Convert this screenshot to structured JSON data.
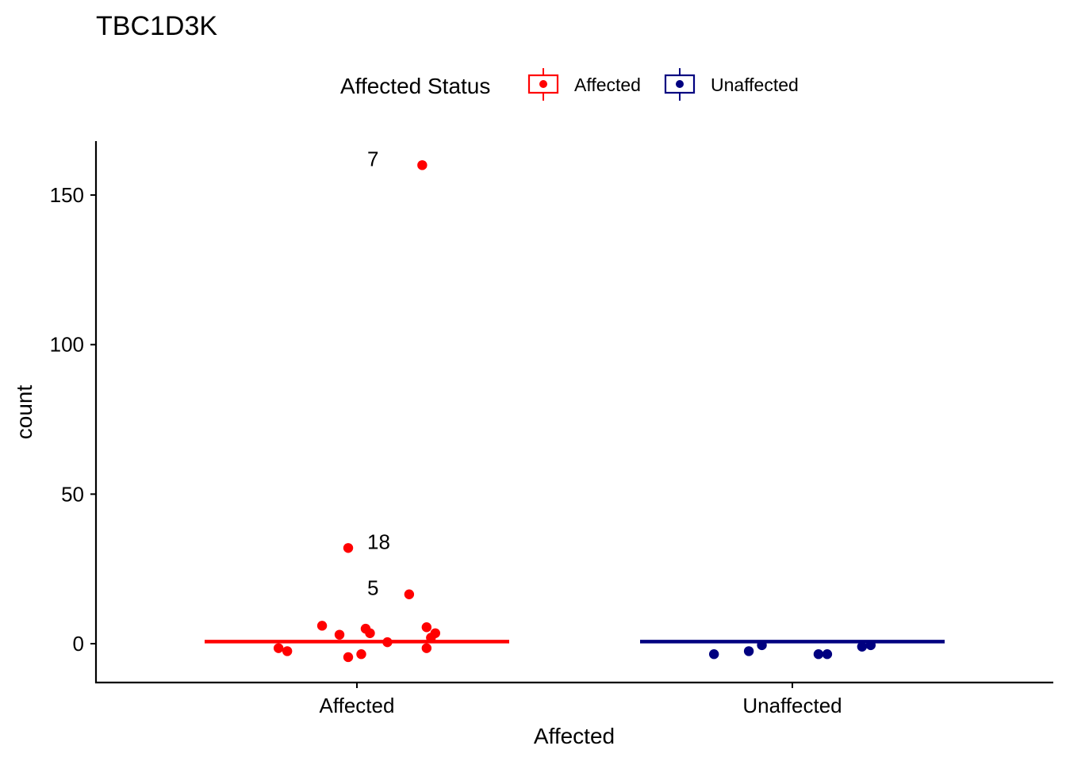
{
  "chart_data": {
    "type": "scatter",
    "title": "TBC1D3K",
    "xlabel": "Affected",
    "ylabel": "count",
    "categories": [
      "Affected",
      "Unaffected"
    ],
    "ylim": [
      -13,
      168
    ],
    "y_ticks": [
      0,
      50,
      100,
      150
    ],
    "grid": false,
    "legend": {
      "title": "Affected Status",
      "position": "top",
      "items": [
        {
          "label": "Affected",
          "color": "#FF0000"
        },
        {
          "label": "Unaffected",
          "color": "#000080"
        }
      ]
    },
    "series": [
      {
        "name": "Affected",
        "color": "#FF0000",
        "category": "Affected",
        "median": 0.7,
        "points": [
          {
            "jitter": 0.15,
            "y": 160
          },
          {
            "jitter": -0.02,
            "y": 32
          },
          {
            "jitter": 0.12,
            "y": 16.5
          },
          {
            "jitter": -0.08,
            "y": 6
          },
          {
            "jitter": 0.16,
            "y": 5.5
          },
          {
            "jitter": 0.02,
            "y": 5
          },
          {
            "jitter": 0.03,
            "y": 3.5
          },
          {
            "jitter": 0.18,
            "y": 3.5
          },
          {
            "jitter": -0.04,
            "y": 3
          },
          {
            "jitter": 0.17,
            "y": 2
          },
          {
            "jitter": 0.07,
            "y": 0.5
          },
          {
            "jitter": -0.18,
            "y": -1.5
          },
          {
            "jitter": 0.16,
            "y": -1.5
          },
          {
            "jitter": -0.16,
            "y": -2.5
          },
          {
            "jitter": 0.01,
            "y": -3.5
          },
          {
            "jitter": -0.02,
            "y": -4.5
          }
        ],
        "labels": [
          {
            "text": "7",
            "point": 0
          },
          {
            "text": "18",
            "point": 1
          },
          {
            "text": "5",
            "point": 2
          }
        ]
      },
      {
        "name": "Unaffected",
        "color": "#000080",
        "category": "Unaffected",
        "median": 0.7,
        "points": [
          {
            "jitter": -0.18,
            "y": -3.5
          },
          {
            "jitter": -0.1,
            "y": -2.5
          },
          {
            "jitter": -0.07,
            "y": -0.5
          },
          {
            "jitter": 0.06,
            "y": -3.5
          },
          {
            "jitter": 0.08,
            "y": -3.5
          },
          {
            "jitter": 0.16,
            "y": -1
          },
          {
            "jitter": 0.18,
            "y": -0.5
          }
        ],
        "labels": []
      }
    ]
  }
}
